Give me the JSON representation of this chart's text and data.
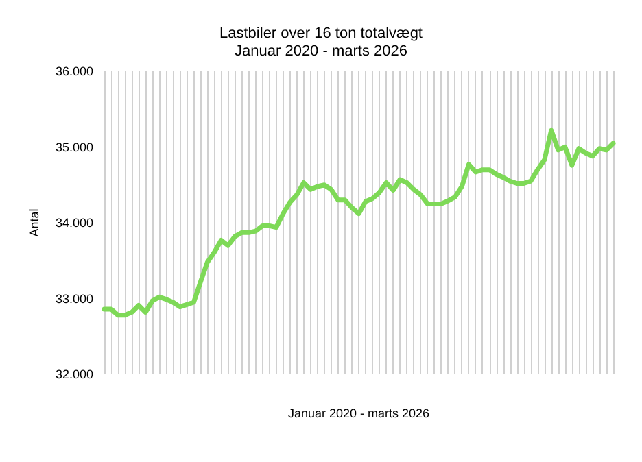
{
  "chart_data": {
    "type": "line",
    "title": "Lastbiler over 16 ton totalvægt",
    "subtitle": "Januar 2020 - marts 2026",
    "xlabel": "Januar 2020 - marts 2026",
    "ylabel": "Antal",
    "categories": [
      null,
      null,
      null,
      null,
      null,
      null,
      null,
      null,
      null,
      null,
      null,
      null,
      null,
      null,
      null,
      null,
      null,
      null,
      null,
      null,
      null,
      null,
      null,
      null,
      null,
      null,
      null,
      null,
      null,
      null,
      null,
      null,
      null,
      null,
      null,
      null,
      null,
      null,
      null,
      null,
      null,
      null,
      null,
      null,
      null,
      null,
      null,
      null,
      null,
      null,
      null,
      null,
      null,
      null,
      null,
      null,
      null,
      null,
      null,
      null,
      null,
      null,
      null,
      null,
      null,
      null,
      null,
      null,
      null,
      null,
      null,
      null,
      null,
      null,
      null
    ],
    "series": [
      {
        "color": "#7ed957",
        "values": [
          32860,
          32860,
          32780,
          32780,
          32820,
          32910,
          32820,
          32970,
          33020,
          32990,
          32950,
          32890,
          32920,
          32950,
          33220,
          33480,
          33610,
          33770,
          33700,
          33820,
          33870,
          33870,
          33890,
          33960,
          33960,
          33940,
          34120,
          34270,
          34370,
          34530,
          34440,
          34480,
          34500,
          34440,
          34300,
          34300,
          34200,
          34120,
          34280,
          34320,
          34400,
          34530,
          34430,
          34570,
          34530,
          34440,
          34370,
          34250,
          34250,
          34250,
          34290,
          34340,
          34480,
          34770,
          34670,
          34700,
          34700,
          34640,
          34600,
          34550,
          34520,
          34520,
          34550,
          34700,
          34830,
          35220,
          34960,
          35000,
          34760,
          34980,
          34920,
          34880,
          34980,
          34960,
          35050
        ]
      }
    ],
    "ylim": [
      32000,
      36000
    ],
    "yticks": [
      {
        "value": 32000,
        "label": "32.000"
      },
      {
        "value": 33000,
        "label": "33.000"
      },
      {
        "value": 34000,
        "label": "34.000"
      },
      {
        "value": 35000,
        "label": "35.000"
      },
      {
        "value": 36000,
        "label": "36.000"
      }
    ],
    "grid": "x",
    "marker": "none",
    "line_style": "solid"
  }
}
